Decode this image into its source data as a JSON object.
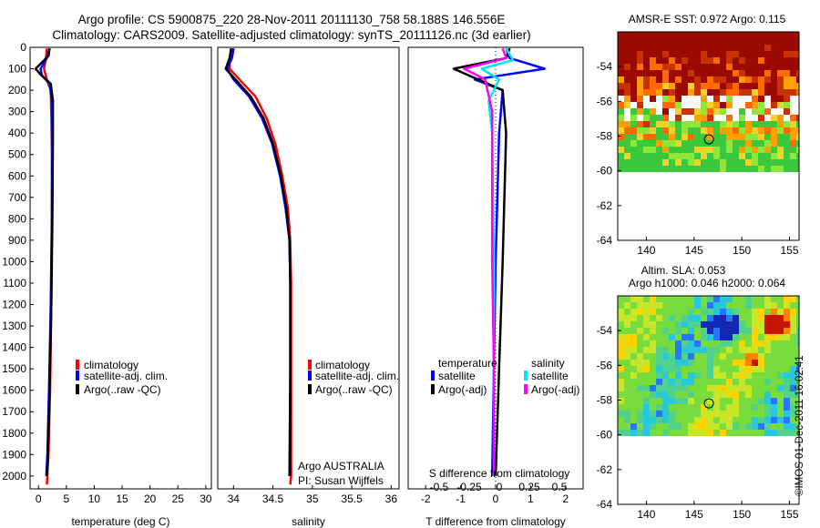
{
  "header": {
    "line1": "Argo profile: CS 5900875_220 28-Nov-2011 20111130_758 58.188S 146.556E",
    "line2": "Climatology: CARS2009. Satellite-adjusted climatology: synTS_20111126.nc (3d earlier)"
  },
  "colors": {
    "climatology": "#ff0000",
    "satellite": "#0000ff",
    "argo": "#000000",
    "sal_satellite": "#00e5ee",
    "sal_argo": "#ff00ff"
  },
  "chart_data": [
    {
      "id": "temperature",
      "type": "line",
      "xlabel": "temperature (deg C)",
      "ylabel": "",
      "xlim": [
        -1.5,
        31
      ],
      "ylim": [
        2060,
        0
      ],
      "xticks": [
        0,
        5,
        10,
        15,
        20,
        25,
        30
      ],
      "yticks": [
        0,
        100,
        200,
        300,
        400,
        500,
        600,
        700,
        800,
        900,
        1000,
        1100,
        1200,
        1300,
        1400,
        1500,
        1600,
        1700,
        1800,
        1900,
        2000
      ],
      "legend": [
        "climatology",
        "satellite-adj. clim.",
        "Argo(..raw -QC)"
      ],
      "series": [
        {
          "name": "climatology",
          "color": "#ff0000",
          "points": [
            [
              1.5,
              5
            ],
            [
              1.3,
              60
            ],
            [
              1.0,
              100
            ],
            [
              1.5,
              150
            ],
            [
              2.2,
              200
            ],
            [
              2.3,
              300
            ],
            [
              2.4,
              500
            ],
            [
              2.4,
              800
            ],
            [
              2.3,
              1200
            ],
            [
              2.1,
              1600
            ],
            [
              1.8,
              1900
            ],
            [
              1.6,
              2000
            ],
            [
              1.5,
              2040
            ]
          ]
        },
        {
          "name": "satellite-adj. clim.",
          "color": "#0000ff",
          "points": [
            [
              2.0,
              5
            ],
            [
              1.5,
              50
            ],
            [
              0.4,
              100
            ],
            [
              0.6,
              130
            ],
            [
              2.0,
              170
            ],
            [
              2.4,
              250
            ],
            [
              2.5,
              400
            ],
            [
              2.4,
              800
            ],
            [
              2.2,
              1200
            ],
            [
              1.9,
              1600
            ],
            [
              1.6,
              1900
            ],
            [
              1.4,
              2000
            ]
          ]
        },
        {
          "name": "Argo(..raw -QC)",
          "color": "#000000",
          "points": [
            [
              2.0,
              5
            ],
            [
              1.8,
              40
            ],
            [
              -0.5,
              100
            ],
            [
              0.5,
              130
            ],
            [
              2.2,
              170
            ],
            [
              2.6,
              250
            ],
            [
              2.6,
              400
            ],
            [
              2.5,
              800
            ],
            [
              2.3,
              1200
            ],
            [
              2.0,
              1600
            ],
            [
              1.7,
              1900
            ],
            [
              1.5,
              2000
            ]
          ]
        }
      ]
    },
    {
      "id": "salinity",
      "type": "line",
      "xlabel": "salinity",
      "ylabel": "",
      "xlim": [
        33.8,
        36.1
      ],
      "ylim": [
        2060,
        0
      ],
      "xticks": [
        34,
        34.5,
        35,
        35.5,
        36
      ],
      "legend": [
        "climatology",
        "satellite-adj. clim.",
        "Argo(..raw -QC)"
      ],
      "annotations": [
        "Argo AUSTRALIA",
        "PI: Susan Wijffels"
      ],
      "series": [
        {
          "name": "climatology",
          "color": "#ff0000",
          "points": [
            [
              33.97,
              5
            ],
            [
              33.95,
              60
            ],
            [
              33.95,
              100
            ],
            [
              34.1,
              160
            ],
            [
              34.28,
              230
            ],
            [
              34.42,
              330
            ],
            [
              34.53,
              450
            ],
            [
              34.62,
              600
            ],
            [
              34.69,
              750
            ],
            [
              34.72,
              900
            ],
            [
              34.73,
              1100
            ],
            [
              34.73,
              1500
            ],
            [
              34.73,
              2000
            ],
            [
              34.72,
              2040
            ]
          ]
        },
        {
          "name": "satellite-adj. clim.",
          "color": "#0000ff",
          "points": [
            [
              34.0,
              5
            ],
            [
              33.98,
              50
            ],
            [
              33.92,
              100
            ],
            [
              34.0,
              150
            ],
            [
              34.2,
              230
            ],
            [
              34.36,
              330
            ],
            [
              34.49,
              450
            ],
            [
              34.59,
              600
            ],
            [
              34.66,
              750
            ],
            [
              34.71,
              900
            ],
            [
              34.72,
              1100
            ],
            [
              34.72,
              1500
            ],
            [
              34.72,
              2000
            ]
          ]
        },
        {
          "name": "Argo(..raw -QC)",
          "color": "#000000",
          "points": [
            [
              33.97,
              5
            ],
            [
              33.95,
              50
            ],
            [
              33.9,
              100
            ],
            [
              34.05,
              160
            ],
            [
              34.22,
              230
            ],
            [
              34.38,
              330
            ],
            [
              34.5,
              450
            ],
            [
              34.6,
              600
            ],
            [
              34.67,
              750
            ],
            [
              34.71,
              900
            ],
            [
              34.72,
              1100
            ],
            [
              34.72,
              1500
            ],
            [
              34.71,
              2000
            ]
          ]
        }
      ]
    },
    {
      "id": "difference",
      "type": "line",
      "xlabel": "T difference from climatology",
      "x2label": "S difference from climatology",
      "xlim": [
        -2.5,
        2.5
      ],
      "ylim": [
        2060,
        0
      ],
      "xticks": [
        -2,
        -1,
        0,
        1,
        2
      ],
      "x2ticks": [
        "-0.5",
        "-0.25",
        "0",
        "0.25",
        "0.5"
      ],
      "legend": {
        "temperature_heading": "temperature",
        "salinity_heading": "salinity",
        "labels": [
          "satellite",
          "Argo(-adj)",
          "satellite",
          "Argo(-adj)"
        ]
      },
      "series": [
        {
          "name": "temperature satellite",
          "color": "#0000ff",
          "points": [
            [
              0.3,
              5
            ],
            [
              0.4,
              50
            ],
            [
              1.4,
              100
            ],
            [
              -0.6,
              150
            ],
            [
              0.2,
              200
            ],
            [
              0.1,
              400
            ],
            [
              0.0,
              1000
            ],
            [
              -0.05,
              1500
            ],
            [
              -0.1,
              2000
            ]
          ]
        },
        {
          "name": "temperature Argo(-adj)",
          "color": "#000000",
          "points": [
            [
              0.4,
              5
            ],
            [
              0.3,
              50
            ],
            [
              -1.2,
              100
            ],
            [
              -0.5,
              150
            ],
            [
              0.2,
              200
            ],
            [
              0.3,
              400
            ],
            [
              0.2,
              1000
            ],
            [
              0.1,
              1500
            ],
            [
              0.0,
              2000
            ]
          ]
        },
        {
          "name": "salinity satellite",
          "color": "#00e5ee",
          "points": [
            [
              0.3,
              5
            ],
            [
              0.5,
              60
            ],
            [
              -0.4,
              100
            ],
            [
              0.1,
              150
            ],
            [
              -0.2,
              250
            ],
            [
              -0.1,
              400
            ],
            [
              -0.05,
              1000
            ],
            [
              -0.05,
              1500
            ],
            [
              -0.05,
              2000
            ]
          ]
        },
        {
          "name": "salinity Argo(-adj)",
          "color": "#ff00ff",
          "points": [
            [
              0.2,
              5
            ],
            [
              0.3,
              50
            ],
            [
              -0.9,
              100
            ],
            [
              -0.3,
              150
            ],
            [
              -0.1,
              300
            ],
            [
              -0.1,
              600
            ],
            [
              -0.1,
              1000
            ],
            [
              -0.05,
              1500
            ],
            [
              -0.05,
              2000
            ]
          ]
        }
      ]
    },
    {
      "id": "sst_map",
      "type": "heatmap",
      "title": "AMSR-E SST: 0.972 Argo: 0.115",
      "xlim": [
        137,
        156
      ],
      "ylim": [
        -64,
        -52
      ],
      "xticks": [
        140,
        145,
        150,
        155
      ],
      "yticks": [
        -54,
        -56,
        -58,
        -60,
        -62,
        -64
      ],
      "marker": {
        "lon": 146.556,
        "lat": -58.188
      }
    },
    {
      "id": "sla_map",
      "type": "heatmap",
      "title": "Altim. SLA: 0.053",
      "subtitle": "Argo h1000: 0.046 h2000: 0.064",
      "xlim": [
        137,
        156
      ],
      "ylim": [
        -64,
        -52
      ],
      "xticks": [
        140,
        145,
        150,
        155
      ],
      "yticks": [
        -54,
        -56,
        -58,
        -60,
        -62,
        -64
      ],
      "marker": {
        "lon": 146.556,
        "lat": -58.188
      }
    }
  ],
  "footer": {
    "signature": "©IMOS 01-Dec-2011 16:02:41"
  }
}
